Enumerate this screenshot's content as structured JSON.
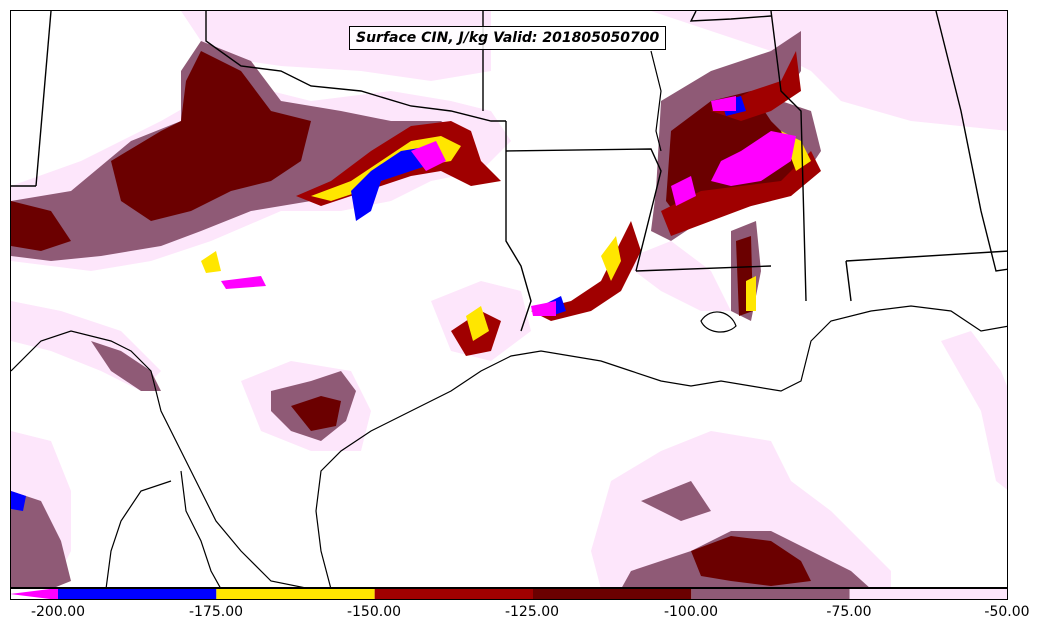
{
  "title": "Surface CIN, J/kg Valid: 201805050700",
  "colorbar": {
    "ticks": [
      "-200.00",
      "-175.00",
      "-150.00",
      "-125.00",
      "-100.00",
      "-75.00",
      "-50.00"
    ],
    "segments": [
      {
        "from": -200,
        "to": -175,
        "color": "#0000ff"
      },
      {
        "from": -175,
        "to": -150,
        "color": "#ffe600"
      },
      {
        "from": -150,
        "to": -125,
        "color": "#a00000"
      },
      {
        "from": -125,
        "to": -100,
        "color": "#6b0000"
      },
      {
        "from": -100,
        "to": -75,
        "color": "#8f5a76"
      },
      {
        "from": -75,
        "to": -50,
        "color": "#fde6fb"
      }
    ],
    "under_color": "#ff00ff"
  }
}
